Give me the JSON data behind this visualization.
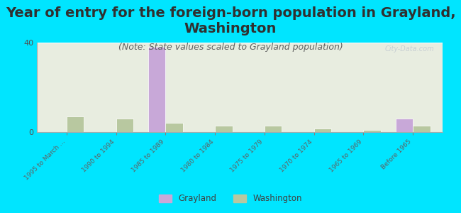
{
  "title": "Year of entry for the foreign-born population in Grayland,\nWashington",
  "subtitle": "(Note: State values scaled to Grayland population)",
  "categories": [
    "1995 to March ...",
    "1990 to 1994",
    "1985 to 1989",
    "1980 to 1984",
    "1975 to 1979",
    "1970 to 1974",
    "1965 to 1969",
    "Before 1965"
  ],
  "grayland_values": [
    0,
    0,
    38,
    0,
    0,
    0,
    0,
    6
  ],
  "washington_values": [
    7,
    6,
    4,
    3,
    3,
    1.5,
    1,
    3
  ],
  "grayland_color": "#c8a8d8",
  "washington_color": "#b8c8a0",
  "background_color": "#00e5ff",
  "plot_bg_top": "#e8ede0",
  "plot_bg_bottom": "#f5f8f0",
  "ylim": [
    0,
    40
  ],
  "yticks": [
    0,
    40
  ],
  "title_fontsize": 14,
  "subtitle_fontsize": 9,
  "watermark": "City-Data.com"
}
